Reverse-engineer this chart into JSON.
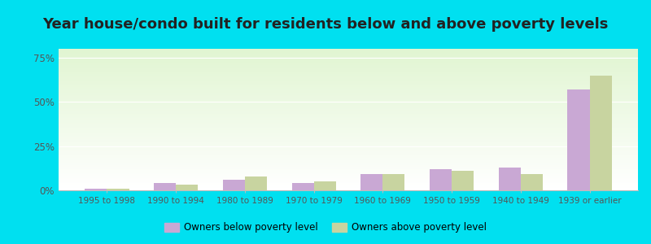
{
  "title": "Year house/condo built for residents below and above poverty levels",
  "categories": [
    "1995 to 1998",
    "1990 to 1994",
    "1980 to 1989",
    "1970 to 1979",
    "1960 to 1969",
    "1950 to 1959",
    "1940 to 1949",
    "1939 or earlier"
  ],
  "below_poverty": [
    1.0,
    4.0,
    6.0,
    4.0,
    9.0,
    12.0,
    13.0,
    57.0
  ],
  "above_poverty": [
    1.0,
    3.0,
    8.0,
    5.0,
    9.0,
    11.0,
    9.0,
    65.0
  ],
  "below_color": "#c9a8d4",
  "above_color": "#c8d4a0",
  "ylim": [
    0,
    80
  ],
  "yticks": [
    0,
    25,
    50,
    75
  ],
  "ytick_labels": [
    "0%",
    "25%",
    "50%",
    "75%"
  ],
  "legend_below": "Owners below poverty level",
  "legend_above": "Owners above poverty level",
  "title_fontsize": 13,
  "outer_bg": "#00e0f0",
  "grid_color": "#e0eecc",
  "bar_width": 0.32
}
